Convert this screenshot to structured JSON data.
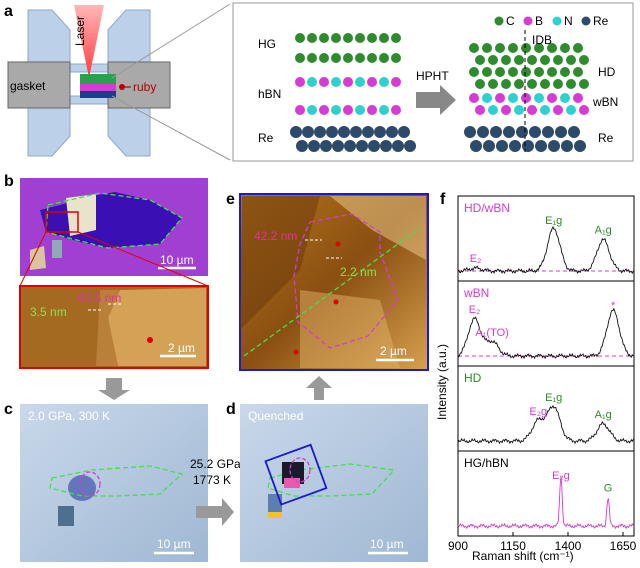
{
  "panels": {
    "a": "a",
    "b": "b",
    "c": "c",
    "d": "d",
    "e": "e",
    "f": "f"
  },
  "panel_a": {
    "laser": "Laser",
    "gasket": "gasket",
    "ruby": "ruby",
    "left_labels": [
      "HG",
      "hBN",
      "Re"
    ],
    "arrow_label": "HPHT",
    "idb": "IDB",
    "right_labels": [
      "HD",
      "wBN",
      "Re"
    ],
    "legend": [
      {
        "symbol": "C",
        "color": "#2e8b2e"
      },
      {
        "symbol": "B",
        "color": "#d63bd3"
      },
      {
        "symbol": "N",
        "color": "#2fd0d0"
      },
      {
        "symbol": "Re",
        "color": "#2d4a6b"
      }
    ]
  },
  "panel_b": {
    "scale_top": "10 µm",
    "h1": "63.5 nm",
    "h2": "3.5 nm",
    "scale_bottom": "2 µm"
  },
  "panel_c": {
    "condition": "2.0 GPa, 300 K",
    "scale": "10 µm"
  },
  "arrow_cd": {
    "line1": "25.2 GPa",
    "line2": "1773 K"
  },
  "panel_d": {
    "label": "Quenched",
    "scale": "10 µm"
  },
  "panel_e": {
    "h1": "42.2 nm",
    "h2": "2.2 nm",
    "scale": "2 µm"
  },
  "chart_data": {
    "type": "line",
    "xlabel": "Raman shift (cm⁻¹)",
    "ylabel": "Intensity (a.u.)",
    "xlim": [
      900,
      1700
    ],
    "x_ticks": [
      900,
      1150,
      1400,
      1650
    ],
    "stacked_panels": [
      {
        "name": "HD/wBN",
        "peaks": [
          {
            "label": "E₂",
            "x": 980,
            "height": 0.05
          },
          {
            "label": "E₁g",
            "x": 1335,
            "height": 0.75
          },
          {
            "label": "A₁g",
            "x": 1560,
            "height": 0.55
          }
        ]
      },
      {
        "name": "wBN",
        "peaks": [
          {
            "label": "E₂",
            "x": 975,
            "height": 0.65
          },
          {
            "label": "A₁(TO)",
            "x": 1055,
            "height": 0.25
          },
          {
            "label": "*",
            "x": 1605,
            "height": 0.8
          }
        ]
      },
      {
        "name": "HD",
        "peaks": [
          {
            "label": "E₂g",
            "x": 1265,
            "height": 0.35
          },
          {
            "label": "E₁g",
            "x": 1335,
            "height": 0.6
          },
          {
            "label": "A₁g",
            "x": 1560,
            "height": 0.3
          }
        ]
      },
      {
        "name": "HG/hBN",
        "peaks": [
          {
            "label": "E₂g",
            "x": 1368,
            "height": 0.9
          },
          {
            "label": "G",
            "x": 1582,
            "height": 0.5
          }
        ]
      }
    ]
  }
}
